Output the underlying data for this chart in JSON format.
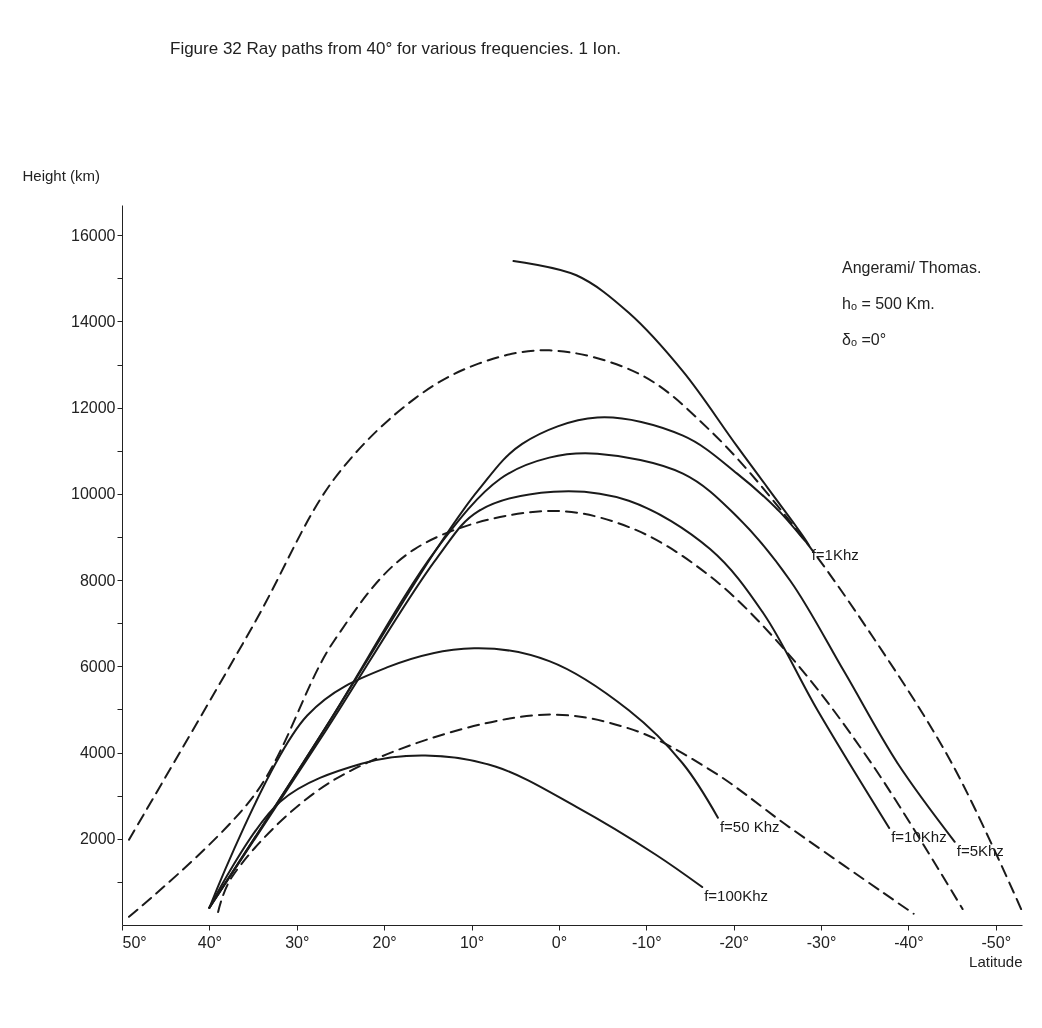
{
  "chart_data": {
    "type": "line",
    "title": "Figure 32 Ray paths from 40° for various frequencies.   1 Ion.",
    "xlabel": "Latitude",
    "ylabel": "Height (km)",
    "annotations": [
      "Angerami/ Thomas.",
      "hₒ = 500 Km.",
      "δₒ =0°"
    ],
    "xlim": [
      50,
      -53
    ],
    "xticks": [
      {
        "value": 50,
        "label": "50°"
      },
      {
        "value": 40,
        "label": "40°"
      },
      {
        "value": 30,
        "label": "30°"
      },
      {
        "value": 20,
        "label": "20°"
      },
      {
        "value": 10,
        "label": "10°"
      },
      {
        "value": 0,
        "label": "0°"
      },
      {
        "value": -10,
        "label": "-10°"
      },
      {
        "value": -20,
        "label": "-20°"
      },
      {
        "value": -30,
        "label": "-30°"
      },
      {
        "value": -40,
        "label": "-40°"
      },
      {
        "value": -50,
        "label": "-50°"
      }
    ],
    "ylim": [
      0,
      16700
    ],
    "yticks": [
      {
        "value": 1000,
        "label": null
      },
      2000,
      {
        "value": 3000,
        "label": null
      },
      4000,
      {
        "value": 5000,
        "label": null
      },
      6000,
      {
        "value": 7000,
        "label": null
      },
      8000,
      {
        "value": 9000,
        "label": null
      },
      10000,
      {
        "value": 11000,
        "label": null
      },
      12000,
      {
        "value": 13000,
        "label": null
      },
      14000,
      {
        "value": 15000,
        "label": null
      },
      16000
    ],
    "grid": false,
    "marker": "none",
    "series": [
      {
        "name": "f=1Khz",
        "color": "#1a1a1a",
        "line_style": "solid",
        "x": [
          40,
          26.7,
          14,
          9.2,
          4.2,
          -4.4,
          -14.2,
          -20.4,
          -25.2,
          -28.7,
          -20.4,
          -14.2,
          -8,
          -2,
          5.2
        ],
        "values": [
          400,
          4580,
          8720,
          10090,
          11160,
          11770,
          11350,
          10470,
          9600,
          8790,
          11100,
          12840,
          14200,
          15070,
          15400
        ]
      },
      {
        "name": "f=5Khz",
        "color": "#1a1a1a",
        "line_style": "solid",
        "x": [
          40,
          26.7,
          14,
          6.7,
          1.1,
          -4.4,
          -14.2,
          -20.4,
          -26.5,
          -32.7,
          -38.8,
          -45.3
        ],
        "values": [
          400,
          4580,
          8720,
          10350,
          10840,
          10930,
          10470,
          9470,
          7980,
          5860,
          3740,
          1930
        ]
      },
      {
        "name": "f=10Khz",
        "color": "#1a1a1a",
        "line_style": "solid",
        "x": [
          40,
          26.7,
          14,
          9.2,
          0.6,
          -8,
          -17.3,
          -23.4,
          -29.6,
          -37.8
        ],
        "values": [
          400,
          4500,
          8500,
          9600,
          10050,
          9840,
          8720,
          7230,
          4980,
          2250
        ]
      },
      {
        "name": "f=50 Khz",
        "color": "#1a1a1a",
        "line_style": "solid",
        "x": [
          40,
          28.8,
          19.6,
          9.7,
          1.1,
          -8,
          -14.2,
          -18.2
        ],
        "values": [
          400,
          4860,
          5980,
          6420,
          6120,
          4980,
          3740,
          2490
        ]
      },
      {
        "name": "f=100Khz",
        "color": "#1a1a1a",
        "line_style": "solid",
        "x": [
          40,
          31.9,
          22.6,
          15.3,
          7.2,
          -2,
          -11.1,
          -16.4
        ],
        "values": [
          400,
          2860,
          3740,
          3930,
          3670,
          2740,
          1630,
          880
        ]
      },
      {
        "color": "#1a1a1a",
        "line_style": "dashed",
        "x": [
          49.2,
          34.9,
          25.7,
          16.5,
          9.2,
          1.1,
          -9.3,
          -17.3,
          -26.5,
          -35.8,
          -45,
          -52.9
        ],
        "values": [
          1980,
          6980,
          10350,
          12210,
          13020,
          13330,
          12770,
          11470,
          9350,
          6720,
          3740,
          370
        ]
      },
      {
        "color": "#1a1a1a",
        "line_style": "dashed",
        "x": [
          49.2,
          34.9,
          25.7,
          16.5,
          1.7,
          -8,
          -17.3,
          -26.5,
          -35.8,
          -46.2
        ],
        "values": [
          190,
          3000,
          6600,
          8720,
          9600,
          9230,
          8090,
          6230,
          3740,
          370
        ]
      },
      {
        "color": "#1a1a1a",
        "line_style": "dashed",
        "x": [
          39,
          37.4,
          25.7,
          3,
          -8,
          -17.3,
          -26.5,
          -40.6
        ],
        "values": [
          300,
          1120,
          3370,
          4860,
          4560,
          3600,
          2250,
          260
        ]
      }
    ]
  }
}
